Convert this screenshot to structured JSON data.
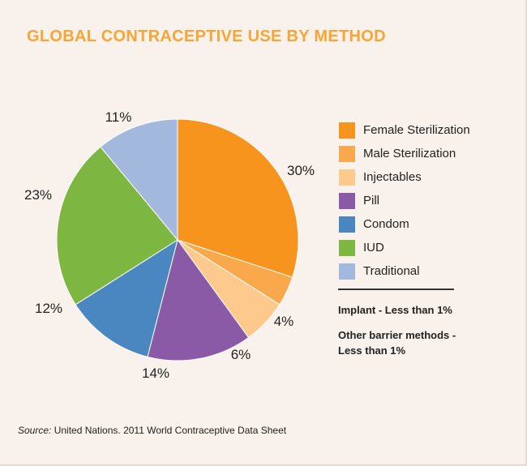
{
  "title": "GLOBAL CONTRACEPTIVE USE BY METHOD",
  "chart_data": {
    "type": "pie",
    "title": "GLOBAL CONTRACEPTIVE USE BY METHOD",
    "slices": [
      {
        "name": "Female Sterilization",
        "value": 30,
        "label": "30%",
        "color": "#f7941d"
      },
      {
        "name": "Male Sterilization",
        "value": 4,
        "label": "4%",
        "color": "#f9a94b"
      },
      {
        "name": "Injectables",
        "value": 6,
        "label": "6%",
        "color": "#fdc98d"
      },
      {
        "name": "Pill",
        "value": 14,
        "label": "14%",
        "color": "#8a5aa7"
      },
      {
        "name": "Condom",
        "value": 12,
        "label": "12%",
        "color": "#4a87c0"
      },
      {
        "name": "IUD",
        "value": 23,
        "label": "23%",
        "color": "#7db742"
      },
      {
        "name": "Traditional",
        "value": 11,
        "label": "11%",
        "color": "#a3b8dd"
      }
    ]
  },
  "notes": {
    "implant": "Implant - Less than 1%",
    "other_barrier": "Other barrier methods - Less than 1%"
  },
  "source": {
    "prefix": "Source:",
    "text": " United Nations. 2011 World Contraceptive Data Sheet"
  }
}
